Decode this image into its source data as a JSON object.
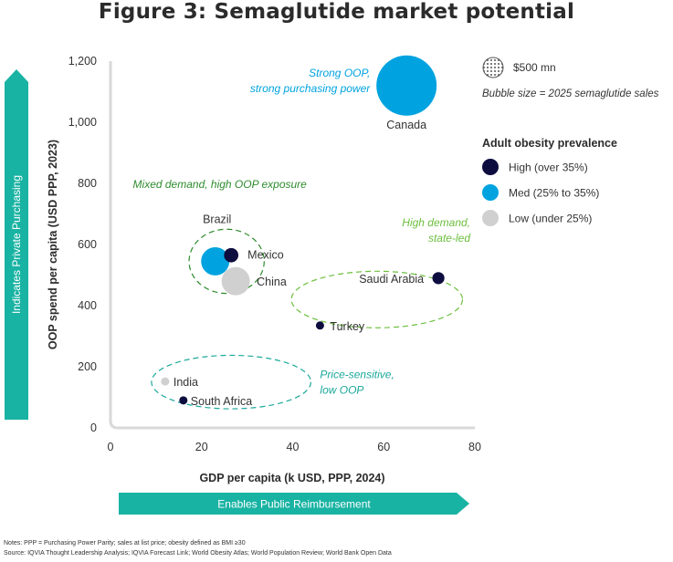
{
  "title": "Figure 3: Semaglutide market potential",
  "chart_data": {
    "type": "scatter",
    "subtype": "bubble",
    "xlabel": "GDP per capita (k USD, PPP, 2024)",
    "ylabel": "OOP spend per capita (USD PPP, 2023)",
    "xlim": [
      0,
      80
    ],
    "ylim": [
      0,
      1200
    ],
    "x_ticks": [
      0,
      20,
      40,
      60,
      80
    ],
    "y_ticks": [
      0,
      200,
      400,
      600,
      800,
      1000,
      1200
    ],
    "y_tick_labels": [
      "0",
      "200",
      "400",
      "600",
      "800",
      "1,000",
      "1,200"
    ],
    "x_arrow_label": "Enables Public Reimbursement",
    "y_arrow_label": "Indicates Private Purchasing",
    "bubble_size_note": "Bubble size = 2025 semaglutide sales",
    "size_legend_label": "$500 mn",
    "size_legend_value_mn": 500,
    "legend_title": "Adult obesity prevalence",
    "categories": [
      {
        "key": "high",
        "label": "High (over 35%)",
        "color": "#0d0d3f"
      },
      {
        "key": "med",
        "label": "Med (25% to 35%)",
        "color": "#00a3e0"
      },
      {
        "key": "low",
        "label": "Low (under 25%)",
        "color": "#d0d0d0"
      }
    ],
    "points": [
      {
        "label": "Canada",
        "x": 65,
        "y": 1120,
        "sales_mn": 1500,
        "category": "med"
      },
      {
        "label": "Brazil",
        "x": 23,
        "y": 545,
        "sales_mn": 330,
        "category": "med"
      },
      {
        "label": "Mexico",
        "x": 26.5,
        "y": 565,
        "sales_mn": 85,
        "category": "high"
      },
      {
        "label": "China",
        "x": 27.5,
        "y": 480,
        "sales_mn": 330,
        "category": "low"
      },
      {
        "label": "Saudi Arabia",
        "x": 72,
        "y": 490,
        "sales_mn": 60,
        "category": "high"
      },
      {
        "label": "Turkey",
        "x": 46,
        "y": 335,
        "sales_mn": 15,
        "category": "high"
      },
      {
        "label": "India",
        "x": 12,
        "y": 152,
        "sales_mn": 10,
        "category": "low"
      },
      {
        "label": "South Africa",
        "x": 16,
        "y": 90,
        "sales_mn": 8,
        "category": "high"
      }
    ],
    "annotations": [
      {
        "id": "strong",
        "lines": [
          "Strong OOP,",
          "strong purchasing power"
        ],
        "color": "#00a3e0",
        "anchor": "end",
        "x": 57,
        "y": 1150
      },
      {
        "id": "mixed",
        "lines": [
          "Mixed demand, high OOP exposure"
        ],
        "color": "#2e8b2e",
        "anchor": "middle",
        "x": 24,
        "y": 785
      },
      {
        "id": "highdemand",
        "lines": [
          "High demand,",
          "state-led"
        ],
        "color": "#6cbf3e",
        "anchor": "end",
        "x": 79,
        "y": 660
      },
      {
        "id": "price",
        "lines": [
          "Price-sensitive,",
          "low OOP"
        ],
        "color": "#1aa89a",
        "anchor": "start",
        "x": 46,
        "y": 162
      }
    ],
    "groups": [
      {
        "id": "mixed-demand-ellipse",
        "cx": 25.5,
        "cy": 545,
        "rx": 16.5,
        "ry": 210,
        "color": "#2e8b2e"
      },
      {
        "id": "high-demand-ellipse",
        "cx": 58.5,
        "cy": 420,
        "rx": 37.6,
        "ry": 185,
        "color": "#6cbf3e"
      },
      {
        "id": "price-sensitive-ellipse",
        "cx": 26.5,
        "cy": 150,
        "rx": 35,
        "ry": 175,
        "color": "#1aa89a"
      }
    ]
  },
  "notes": {
    "line1": "Notes: PPP = Purchasing Power Parity; sales at list price; obesity defined as BMI ≥30",
    "line2": "Source: IQVIA Thought Leadership Analysis; IQVIA Forecast Link; World Obesity Atlas; World Population Review; World Bank Open Data"
  }
}
